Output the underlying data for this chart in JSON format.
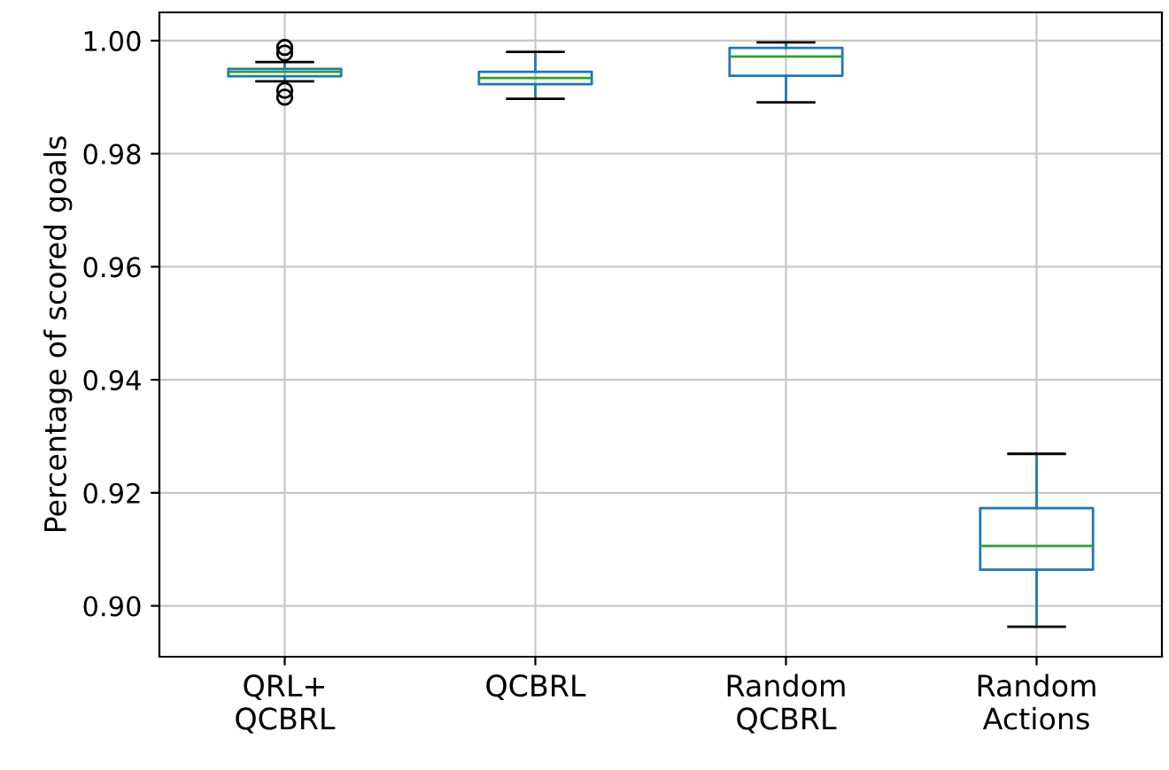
{
  "chart_data": {
    "type": "box",
    "ylabel": "Percentage of scored goals",
    "categories": [
      "QRL+\nQCBRL",
      "QCBRL",
      "Random\nQCBRL",
      "Random\nActions"
    ],
    "boxes": [
      {
        "low": 0.9928,
        "q1": 0.9937,
        "median": 0.9945,
        "q3": 0.995,
        "high": 0.9962,
        "outliers": [
          0.9988,
          0.9978,
          0.9912,
          0.99
        ]
      },
      {
        "low": 0.9897,
        "q1": 0.9923,
        "median": 0.9934,
        "q3": 0.9945,
        "high": 0.998
      },
      {
        "low": 0.9891,
        "q1": 0.9938,
        "median": 0.9972,
        "q3": 0.9987,
        "high": 0.9997
      },
      {
        "low": 0.8963,
        "q1": 0.9064,
        "median": 0.9106,
        "q3": 0.9173,
        "high": 0.9269
      }
    ],
    "ylim": [
      0.891,
      1.005
    ],
    "yticks": [
      {
        "value": 0.9,
        "label": "0.90"
      },
      {
        "value": 0.92,
        "label": "0.92"
      },
      {
        "value": 0.94,
        "label": "0.94"
      },
      {
        "value": 0.96,
        "label": "0.96"
      },
      {
        "value": 0.98,
        "label": "0.98"
      },
      {
        "value": 1.0,
        "label": "1.00"
      }
    ],
    "grid": true
  }
}
